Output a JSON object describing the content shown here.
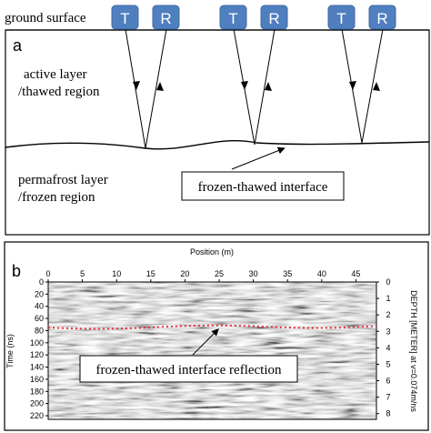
{
  "panel_a": {
    "label": "a",
    "ground_surface": "ground surface",
    "transmitter_label": "T",
    "receiver_label": "R",
    "active_layer_line1": "active layer",
    "active_layer_line2": "/thawed region",
    "permafrost_line1": "permafrost layer",
    "permafrost_line2": "/frozen region",
    "interface_callout": "frozen-thawed interface",
    "antenna_color": "#4f7fbf"
  },
  "panel_b": {
    "label": "b",
    "callout": "frozen-thawed interface reflection",
    "interface_line_color": "#e8323c",
    "chart_data": {
      "type": "heatmap",
      "xlabel": "Position (m)",
      "ylabel": "Time (ns)",
      "y2label": "DEPTH [METER] at v=0.074m/ns",
      "x_ticks": [
        "0",
        "5",
        "10",
        "15",
        "20",
        "25",
        "30",
        "35",
        "40",
        "45"
      ],
      "x_tick_values": [
        0,
        5,
        10,
        15,
        20,
        25,
        30,
        35,
        40,
        45
      ],
      "xlim": [
        0,
        48
      ],
      "y_ticks": [
        "0",
        "20",
        "40",
        "60",
        "80",
        "100",
        "120",
        "140",
        "160",
        "180",
        "200",
        "220"
      ],
      "y_tick_values": [
        0,
        20,
        40,
        60,
        80,
        100,
        120,
        140,
        160,
        180,
        200,
        220
      ],
      "ylim": [
        0,
        226
      ],
      "y2_ticks": [
        "0",
        "1",
        "2",
        "3",
        "4",
        "5",
        "6",
        "7",
        "8"
      ],
      "y2_tick_values": [
        0,
        1,
        2,
        3,
        4,
        5,
        6,
        7,
        8
      ],
      "interface_time_ns": 75
    }
  }
}
